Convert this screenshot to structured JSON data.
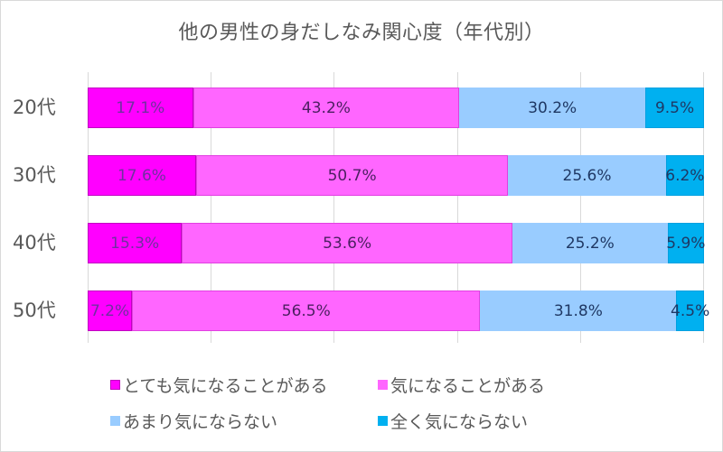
{
  "title": "他の男性の身だしなみ関心度（年代別）",
  "colors": {
    "very_concerned": "#ff00ff",
    "concerned": "#ff66ff",
    "not_very": "#99ccff",
    "not_at_all": "#00b0f0",
    "gridline": "#d9d9d9",
    "text": "#595959",
    "label_dark": "#7030a0",
    "label_darkblue": "#1f3864"
  },
  "categories": [
    "20代",
    "30代",
    "40代",
    "50代"
  ],
  "legend": [
    {
      "label": "とても気になることがある",
      "color": "#ff00ff"
    },
    {
      "label": "気になることがある",
      "color": "#ff66ff"
    },
    {
      "label": "あまり気にならない",
      "color": "#99ccff"
    },
    {
      "label": "全く気にならない",
      "color": "#00b0f0"
    }
  ],
  "bars": [
    {
      "label": "20代",
      "segments": [
        {
          "value": 17.1,
          "text": "17.1%"
        },
        {
          "value": 43.2,
          "text": "43.2%"
        },
        {
          "value": 30.2,
          "text": "30.2%"
        },
        {
          "value": 9.5,
          "text": "9.5%"
        }
      ]
    },
    {
      "label": "30代",
      "segments": [
        {
          "value": 17.6,
          "text": "17.6%"
        },
        {
          "value": 50.7,
          "text": "50.7%"
        },
        {
          "value": 25.6,
          "text": "25.6%"
        },
        {
          "value": 6.2,
          "text": "6.2%"
        }
      ]
    },
    {
      "label": "40代",
      "segments": [
        {
          "value": 15.3,
          "text": "15.3%"
        },
        {
          "value": 53.6,
          "text": "53.6%"
        },
        {
          "value": 25.2,
          "text": "25.2%"
        },
        {
          "value": 5.9,
          "text": "5.9%"
        }
      ]
    },
    {
      "label": "50代",
      "segments": [
        {
          "value": 7.2,
          "text": "7.2%"
        },
        {
          "value": 56.5,
          "text": "56.5%"
        },
        {
          "value": 31.8,
          "text": "31.8%"
        },
        {
          "value": 4.5,
          "text": "4.5%"
        }
      ]
    }
  ],
  "chart_data": {
    "type": "bar",
    "orientation": "horizontal",
    "stacked": "percent",
    "title": "他の男性の身だしなみ関心度（年代別）",
    "categories": [
      "20代",
      "30代",
      "40代",
      "50代"
    ],
    "series": [
      {
        "name": "とても気になることがある",
        "color": "#ff00ff",
        "values": [
          17.1,
          17.6,
          15.3,
          7.2
        ]
      },
      {
        "name": "気になることがある",
        "color": "#ff66ff",
        "values": [
          43.2,
          50.7,
          53.6,
          56.5
        ]
      },
      {
        "name": "あまり気にならない",
        "color": "#99ccff",
        "values": [
          30.2,
          25.6,
          25.2,
          31.8
        ]
      },
      {
        "name": "全く気にならない",
        "color": "#00b0f0",
        "values": [
          9.5,
          6.2,
          5.9,
          4.5
        ]
      }
    ],
    "xlabel": "",
    "ylabel": "",
    "xlim": [
      0,
      100
    ],
    "unit": "%",
    "grid": true,
    "gridlines_at": [
      0,
      20,
      40,
      60,
      80,
      100
    ],
    "axis_tick_labels_shown": false,
    "data_labels": true,
    "legend_position": "bottom"
  }
}
